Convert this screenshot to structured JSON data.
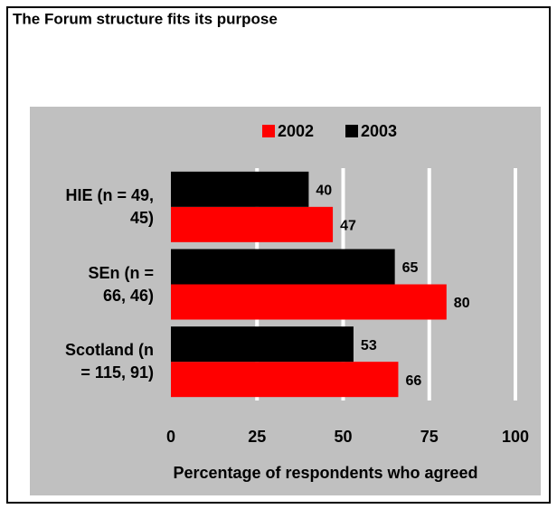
{
  "chart_data": {
    "type": "bar",
    "orientation": "horizontal",
    "title": "The Forum structure fits its purpose",
    "x_label": "Percentage of respondents who agreed",
    "categories": [
      "HIE (n = 49,\n45)",
      "SEn (n =\n66, 46)",
      "Scotland (n\n= 115, 91)"
    ],
    "series": [
      {
        "name": "2002",
        "color": "#ff0000",
        "values": [
          47,
          80,
          66
        ]
      },
      {
        "name": "2003",
        "color": "#000000",
        "values": [
          40,
          65,
          53
        ]
      }
    ],
    "xlim": [
      0,
      100
    ],
    "xticks": [
      0,
      25,
      50,
      75,
      100
    ],
    "grid": true,
    "legend": "top"
  }
}
